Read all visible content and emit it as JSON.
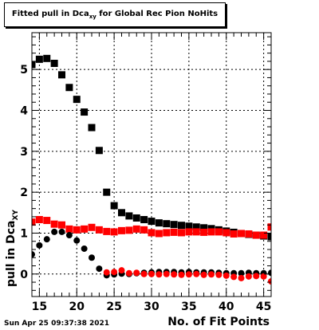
{
  "title_main": "Fitted pull in Dca",
  "title_sub": "xy",
  "title_tail": " for Global Rec Pion NoHits",
  "ylabel_main": "pull in Dca",
  "ylabel_sub": "XY",
  "timestamp": "Sun Apr 25 09:37:38 2021",
  "chart_data": {
    "type": "scatter",
    "title": "Fitted pull in Dca_xy for Global Rec Pion NoHits",
    "xlabel": "No. of Fit Points",
    "ylabel": "pull in Dca_XY",
    "xlim": [
      14,
      46
    ],
    "ylim": [
      -0.55,
      5.9
    ],
    "x_ticks": [
      15,
      20,
      25,
      30,
      35,
      40,
      45
    ],
    "y_ticks": [
      0,
      1,
      2,
      3,
      4,
      5
    ],
    "grid": true,
    "series": [
      {
        "color": "#000000",
        "marker": "square",
        "x": [
          14,
          15,
          16,
          17,
          18,
          19,
          20,
          21,
          22,
          23,
          24,
          25,
          26,
          27,
          28,
          29,
          30,
          31,
          32,
          33,
          34,
          35,
          36,
          37,
          38,
          39,
          40,
          41,
          42,
          43,
          44,
          45,
          46
        ],
        "y": [
          5.12,
          5.25,
          5.27,
          5.15,
          4.87,
          4.56,
          4.27,
          3.96,
          3.58,
          3.02,
          2.0,
          1.67,
          1.5,
          1.42,
          1.37,
          1.33,
          1.29,
          1.25,
          1.23,
          1.21,
          1.19,
          1.17,
          1.15,
          1.13,
          1.11,
          1.08,
          1.05,
          1.02,
          0.99,
          0.97,
          0.95,
          0.93,
          0.91
        ]
      },
      {
        "color": "#ff0000",
        "marker": "square",
        "x": [
          14,
          15,
          16,
          17,
          18,
          19,
          20,
          21,
          22,
          23,
          24,
          25,
          26,
          27,
          28,
          29,
          30,
          31,
          32,
          33,
          34,
          35,
          36,
          37,
          38,
          39,
          40,
          41,
          42,
          43,
          44,
          45,
          46
        ],
        "y": [
          1.27,
          1.33,
          1.31,
          1.22,
          1.2,
          1.1,
          1.08,
          1.1,
          1.14,
          1.08,
          1.04,
          1.03,
          1.06,
          1.07,
          1.1,
          1.08,
          1.01,
          0.99,
          1.01,
          1.02,
          1.01,
          1.03,
          1.03,
          1.02,
          1.03,
          1.03,
          1.01,
          0.98,
          0.99,
          0.98,
          0.95,
          0.95,
          1.15
        ]
      },
      {
        "color": "#000000",
        "marker": "circle",
        "x": [
          14,
          15,
          16,
          17,
          18,
          19,
          20,
          21,
          22,
          23,
          24,
          25,
          26,
          27,
          28,
          29,
          30,
          31,
          32,
          33,
          34,
          35,
          36,
          37,
          38,
          39,
          40,
          41,
          42,
          43,
          44,
          45,
          46
        ],
        "y": [
          0.48,
          0.7,
          0.85,
          1.03,
          1.03,
          0.95,
          0.82,
          0.62,
          0.4,
          0.13,
          -0.03,
          -0.01,
          0.01,
          0.0,
          0.02,
          0.03,
          0.04,
          0.05,
          0.05,
          0.05,
          0.04,
          0.05,
          0.04,
          0.04,
          0.04,
          0.03,
          0.02,
          0.02,
          0.02,
          0.03,
          0.02,
          0.02,
          0.03
        ]
      },
      {
        "color": "#ff0000",
        "marker": "circle",
        "x": [
          24,
          25,
          26,
          27,
          28,
          29,
          30,
          31,
          32,
          33,
          34,
          35,
          36,
          37,
          38,
          39,
          40,
          41,
          42,
          43,
          44,
          45,
          46
        ],
        "y": [
          0.04,
          0.05,
          0.09,
          0.02,
          0.03,
          0.0,
          0.0,
          -0.01,
          0.0,
          -0.01,
          -0.02,
          -0.01,
          0.0,
          -0.02,
          -0.01,
          -0.02,
          -0.04,
          -0.07,
          -0.1,
          -0.06,
          -0.05,
          -0.06,
          -0.18
        ]
      }
    ]
  }
}
